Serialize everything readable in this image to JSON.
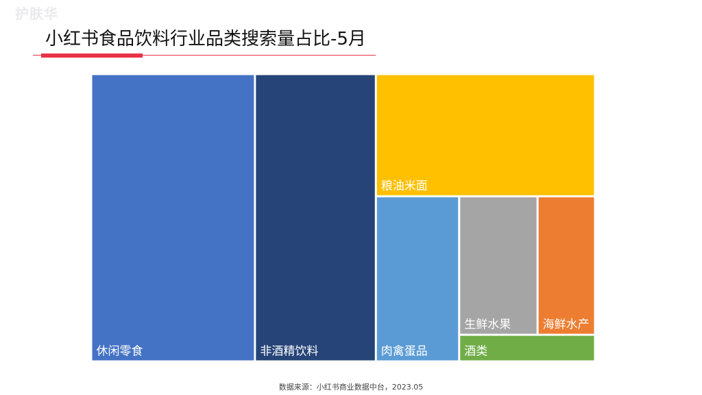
{
  "watermark": "护肤华",
  "title": "小红书食品饮料行业品类搜索量占比-5月",
  "source": "数据来源：小红书商业数据中台，2023.05",
  "colors": {
    "title_accent": "#e83248"
  },
  "chart_data": {
    "type": "treemap",
    "title": "小红书食品饮料行业品类搜索量占比-5月",
    "categories": [
      "休闲零食",
      "非酒精饮料",
      "粮油米面",
      "肉禽蛋品",
      "生鲜水果",
      "海鲜水产",
      "酒类"
    ],
    "values": [
      32.5,
      24.0,
      18.5,
      9.5,
      7.5,
      5.5,
      2.5
    ],
    "unit": "%",
    "colors": [
      "#4472c4",
      "#264478",
      "#ffc000",
      "#5b9bd5",
      "#a5a5a5",
      "#ed7d31",
      "#70ad47"
    ]
  }
}
